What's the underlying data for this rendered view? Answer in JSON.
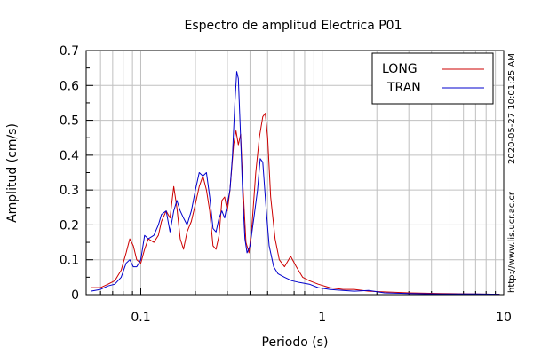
{
  "chart_data": {
    "type": "line",
    "title": "Espectro de amplitud Electrica P01",
    "xlabel": "Periodo (s)",
    "ylabel": "Amplitud (cm/s)",
    "x_scale": "log",
    "xlim": [
      0.05,
      10
    ],
    "ylim": [
      0,
      0.7
    ],
    "grid": true,
    "legend_position": "top-right",
    "x_ticks": [
      {
        "value": 0.1,
        "label": "0.1"
      },
      {
        "value": 1,
        "label": "1"
      },
      {
        "value": 10,
        "label": "10"
      }
    ],
    "y_ticks": [
      {
        "value": 0,
        "label": "0"
      },
      {
        "value": 0.1,
        "label": "0.1"
      },
      {
        "value": 0.2,
        "label": "0.2"
      },
      {
        "value": 0.3,
        "label": "0.3"
      },
      {
        "value": 0.4,
        "label": "0.4"
      },
      {
        "value": 0.5,
        "label": "0.5"
      },
      {
        "value": 0.6,
        "label": "0.6"
      },
      {
        "value": 0.7,
        "label": "0.7"
      }
    ],
    "series": [
      {
        "name": "LONG",
        "color": "#cc0000",
        "points": [
          [
            0.053,
            0.02
          ],
          [
            0.06,
            0.02
          ],
          [
            0.066,
            0.03
          ],
          [
            0.072,
            0.04
          ],
          [
            0.078,
            0.07
          ],
          [
            0.083,
            0.12
          ],
          [
            0.087,
            0.16
          ],
          [
            0.091,
            0.14
          ],
          [
            0.095,
            0.1
          ],
          [
            0.1,
            0.09
          ],
          [
            0.105,
            0.13
          ],
          [
            0.11,
            0.16
          ],
          [
            0.118,
            0.15
          ],
          [
            0.125,
            0.17
          ],
          [
            0.13,
            0.21
          ],
          [
            0.138,
            0.24
          ],
          [
            0.145,
            0.22
          ],
          [
            0.152,
            0.31
          ],
          [
            0.158,
            0.25
          ],
          [
            0.165,
            0.16
          ],
          [
            0.172,
            0.13
          ],
          [
            0.18,
            0.18
          ],
          [
            0.19,
            0.21
          ],
          [
            0.2,
            0.26
          ],
          [
            0.21,
            0.31
          ],
          [
            0.22,
            0.34
          ],
          [
            0.23,
            0.3
          ],
          [
            0.24,
            0.24
          ],
          [
            0.25,
            0.14
          ],
          [
            0.26,
            0.13
          ],
          [
            0.27,
            0.17
          ],
          [
            0.28,
            0.27
          ],
          [
            0.29,
            0.28
          ],
          [
            0.3,
            0.24
          ],
          [
            0.31,
            0.3
          ],
          [
            0.325,
            0.43
          ],
          [
            0.335,
            0.47
          ],
          [
            0.345,
            0.43
          ],
          [
            0.355,
            0.46
          ],
          [
            0.365,
            0.32
          ],
          [
            0.38,
            0.15
          ],
          [
            0.395,
            0.12
          ],
          [
            0.41,
            0.2
          ],
          [
            0.43,
            0.35
          ],
          [
            0.45,
            0.45
          ],
          [
            0.47,
            0.51
          ],
          [
            0.485,
            0.52
          ],
          [
            0.5,
            0.45
          ],
          [
            0.52,
            0.28
          ],
          [
            0.55,
            0.16
          ],
          [
            0.58,
            0.1
          ],
          [
            0.62,
            0.08
          ],
          [
            0.67,
            0.11
          ],
          [
            0.72,
            0.08
          ],
          [
            0.78,
            0.05
          ],
          [
            0.85,
            0.04
          ],
          [
            0.95,
            0.03
          ],
          [
            1.1,
            0.02
          ],
          [
            1.3,
            0.015
          ],
          [
            1.5,
            0.015
          ],
          [
            1.8,
            0.01
          ],
          [
            2.2,
            0.008
          ],
          [
            3.0,
            0.005
          ],
          [
            4.5,
            0.003
          ],
          [
            7.0,
            0.002
          ],
          [
            9.5,
            0.001
          ]
        ]
      },
      {
        "name": "TRAN",
        "color": "#0000cc",
        "points": [
          [
            0.053,
            0.01
          ],
          [
            0.06,
            0.015
          ],
          [
            0.066,
            0.025
          ],
          [
            0.072,
            0.03
          ],
          [
            0.078,
            0.05
          ],
          [
            0.083,
            0.09
          ],
          [
            0.087,
            0.1
          ],
          [
            0.091,
            0.08
          ],
          [
            0.095,
            0.08
          ],
          [
            0.1,
            0.1
          ],
          [
            0.105,
            0.17
          ],
          [
            0.11,
            0.16
          ],
          [
            0.118,
            0.17
          ],
          [
            0.125,
            0.2
          ],
          [
            0.13,
            0.23
          ],
          [
            0.138,
            0.24
          ],
          [
            0.145,
            0.18
          ],
          [
            0.152,
            0.24
          ],
          [
            0.158,
            0.27
          ],
          [
            0.165,
            0.24
          ],
          [
            0.172,
            0.22
          ],
          [
            0.18,
            0.2
          ],
          [
            0.19,
            0.24
          ],
          [
            0.2,
            0.3
          ],
          [
            0.21,
            0.35
          ],
          [
            0.22,
            0.34
          ],
          [
            0.23,
            0.35
          ],
          [
            0.24,
            0.28
          ],
          [
            0.25,
            0.19
          ],
          [
            0.26,
            0.18
          ],
          [
            0.27,
            0.22
          ],
          [
            0.28,
            0.24
          ],
          [
            0.29,
            0.22
          ],
          [
            0.3,
            0.26
          ],
          [
            0.31,
            0.3
          ],
          [
            0.32,
            0.4
          ],
          [
            0.33,
            0.55
          ],
          [
            0.338,
            0.64
          ],
          [
            0.345,
            0.62
          ],
          [
            0.355,
            0.45
          ],
          [
            0.365,
            0.28
          ],
          [
            0.375,
            0.16
          ],
          [
            0.385,
            0.12
          ],
          [
            0.4,
            0.14
          ],
          [
            0.42,
            0.22
          ],
          [
            0.44,
            0.3
          ],
          [
            0.455,
            0.39
          ],
          [
            0.47,
            0.38
          ],
          [
            0.49,
            0.25
          ],
          [
            0.51,
            0.14
          ],
          [
            0.54,
            0.08
          ],
          [
            0.57,
            0.06
          ],
          [
            0.62,
            0.05
          ],
          [
            0.68,
            0.04
          ],
          [
            0.75,
            0.035
          ],
          [
            0.85,
            0.03
          ],
          [
            0.95,
            0.02
          ],
          [
            1.1,
            0.015
          ],
          [
            1.3,
            0.012
          ],
          [
            1.5,
            0.01
          ],
          [
            1.8,
            0.012
          ],
          [
            2.2,
            0.005
          ],
          [
            3.0,
            0.003
          ],
          [
            4.5,
            0.002
          ],
          [
            7.0,
            0.002
          ],
          [
            9.5,
            0.001
          ]
        ]
      }
    ],
    "side_annotations": [
      "2020-05-27 10:01:25 AM",
      "http://www.lis.ucr.ac.cr"
    ]
  }
}
